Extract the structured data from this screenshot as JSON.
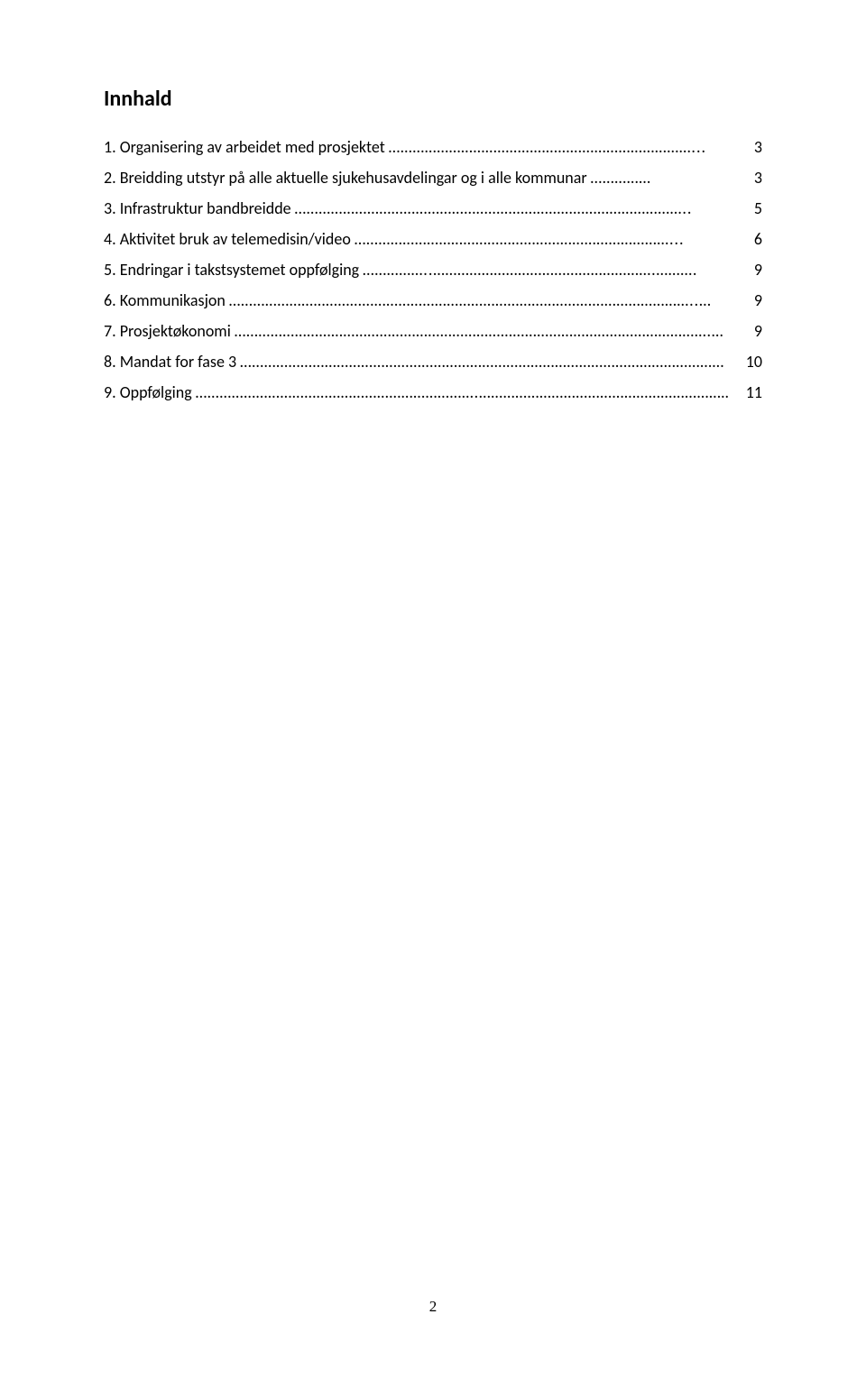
{
  "title": "Innhald",
  "toc": [
    {
      "label": "1. Organisering av arbeidet med prosjektet",
      "leader": " …………………………………………………………………...",
      "page": "3"
    },
    {
      "label": "2. Breidding utstyr på alle aktuelle sjukehusavdelingar og i alle kommunar",
      "leader": " ……………",
      "page": "3"
    },
    {
      "label": "3. Infrastruktur bandbreidde",
      "leader": " ……………………………………………………………………………………..",
      "page": "5"
    },
    {
      "label": "4. Aktivitet bruk av telemedisin/video ",
      "leader": " ……………………………………………………………………...",
      "page": "6"
    },
    {
      "label": "5. Endringar i takstsystemet oppfølging",
      "leader": " ……………..……………………………………………….……….",
      "page": "9"
    },
    {
      "label": "6. Kommunikasjon",
      "leader": " ……………………………………………………………………………………………………..…",
      "page": "9"
    },
    {
      "label": "7. Prosjektøkonomi",
      "leader": " ……………………………………………………………………………………………………….…",
      "page": "9"
    },
    {
      "label": "8. Mandat for fase 3",
      "leader": "…………………………………………………………………………………………………………",
      "page": "10"
    },
    {
      "label": "9. Oppfølging",
      "leader": "…………………………………………………………….………………………………………………………….",
      "page": "11"
    }
  ],
  "pageNumber": "2"
}
